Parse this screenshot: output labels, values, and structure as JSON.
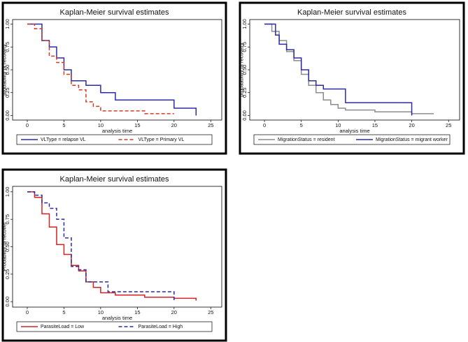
{
  "chart_data": [
    {
      "type": "step",
      "title": "Kaplan-Meier survival estimates",
      "x_label": "analysis time",
      "y_label": "probability of recovery",
      "xlim": [
        -2,
        26.5
      ],
      "ylim": [
        -0.05,
        1.05
      ],
      "xticks": [
        0,
        5,
        10,
        15,
        20,
        25
      ],
      "yticks": [
        {
          "value": 0,
          "label": "0.00"
        },
        {
          "value": 0.25,
          "label": "0.25"
        },
        {
          "value": 0.5,
          "label": "0.50"
        },
        {
          "value": 0.75,
          "label": "0.75"
        },
        {
          "value": 1,
          "label": "1.00"
        }
      ],
      "series": [
        {
          "name": "VLType = relapse VL",
          "color": "#2b2ba6",
          "dash": false,
          "x": [
            0,
            2,
            3,
            4,
            5,
            6,
            8,
            10,
            12,
            20,
            23
          ],
          "values": [
            1,
            0.82,
            0.75,
            0.63,
            0.5,
            0.38,
            0.33,
            0.25,
            0.17,
            0.08,
            0
          ]
        },
        {
          "name": "VLType = Primary VL",
          "color": "#d03a26",
          "dash": true,
          "x": [
            0,
            1,
            2,
            3,
            4,
            5,
            6,
            7,
            8,
            9,
            10,
            16,
            20
          ],
          "values": [
            1,
            0.95,
            0.82,
            0.65,
            0.58,
            0.45,
            0.33,
            0.28,
            0.15,
            0.1,
            0.05,
            0.02,
            0.02
          ]
        }
      ]
    },
    {
      "type": "step",
      "title": "Kaplan-Meier survival estimates",
      "x_label": "analysis time",
      "y_label": "probaability of recovery",
      "xlim": [
        -2,
        26.5
      ],
      "ylim": [
        -0.05,
        1.05
      ],
      "xticks": [
        0,
        5,
        10,
        15,
        20,
        25
      ],
      "yticks": [
        {
          "value": 0,
          "label": "0.00"
        },
        {
          "value": 0.25,
          "label": "0.25"
        },
        {
          "value": 0.5,
          "label": "0.50"
        },
        {
          "value": 0.75,
          "label": "0.75"
        },
        {
          "value": 1,
          "label": "1.00"
        }
      ],
      "series": [
        {
          "name": "MigrationStatus = resident",
          "color": "#8c8c8c",
          "dash": false,
          "x": [
            0,
            1,
            2,
            3,
            4,
            5,
            6,
            7,
            8,
            9,
            10,
            11,
            15,
            20,
            23
          ],
          "values": [
            1,
            0.92,
            0.82,
            0.7,
            0.6,
            0.45,
            0.33,
            0.25,
            0.17,
            0.12,
            0.08,
            0.06,
            0.04,
            0.02,
            0.02
          ]
        },
        {
          "name": "MigrationStatus = migrant worker",
          "color": "#2b2ba6",
          "dash": false,
          "x": [
            0,
            1.5,
            2,
            3,
            4,
            5,
            6,
            7,
            8,
            11,
            20
          ],
          "values": [
            1,
            0.88,
            0.78,
            0.72,
            0.63,
            0.5,
            0.38,
            0.33,
            0.29,
            0.14,
            0
          ]
        }
      ]
    },
    {
      "type": "step",
      "title": "Kaplan-Meier survival estimates",
      "x_label": "analysis time",
      "y_label": "Probability of recover",
      "xlim": [
        -2,
        26.5
      ],
      "ylim": [
        -0.05,
        1.05
      ],
      "xticks": [
        0,
        5,
        10,
        15,
        20,
        25
      ],
      "yticks": [
        {
          "value": 0,
          "label": "0.00"
        },
        {
          "value": 0.25,
          "label": "0.25"
        },
        {
          "value": 0.5,
          "label": "0.50"
        },
        {
          "value": 0.75,
          "label": "0.75"
        },
        {
          "value": 1,
          "label": "1.00"
        }
      ],
      "series": [
        {
          "name": "ParasiteLoad = Low",
          "color": "#d32222",
          "dash": false,
          "x": [
            0,
            1,
            2,
            3,
            4,
            5,
            6,
            7,
            8,
            9,
            10,
            12,
            16,
            20,
            23
          ],
          "values": [
            1,
            0.95,
            0.8,
            0.68,
            0.52,
            0.43,
            0.33,
            0.28,
            0.18,
            0.13,
            0.08,
            0.06,
            0.04,
            0.03,
            0.01
          ]
        },
        {
          "name": "ParasiteLoad = High",
          "color": "#2b2ba6",
          "dash": true,
          "x": [
            0,
            1,
            2,
            3,
            4,
            5,
            6,
            7,
            8,
            11,
            20
          ],
          "values": [
            1,
            0.97,
            0.9,
            0.85,
            0.75,
            0.58,
            0.32,
            0.29,
            0.18,
            0.09,
            0
          ]
        }
      ]
    }
  ]
}
